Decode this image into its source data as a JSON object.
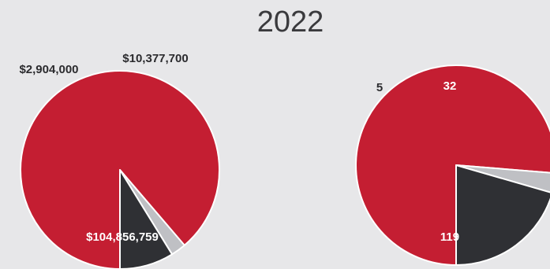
{
  "title": "2022",
  "colors": {
    "background": "#e7e7e9",
    "red": "#c41e32",
    "dark": "#2f3034",
    "light": "#bfc0c4"
  },
  "chart_data": [
    {
      "type": "pie",
      "title": "",
      "slices": [
        {
          "label": "$104,856,759",
          "value": 104856759,
          "color": "#c41e32"
        },
        {
          "label": "$2,904,000",
          "value": 2904000,
          "color": "#bfc0c4"
        },
        {
          "label": "$10,377,700",
          "value": 10377700,
          "color": "#2f3034"
        }
      ]
    },
    {
      "type": "pie",
      "title": "",
      "slices": [
        {
          "label": "119",
          "value": 119,
          "color": "#c41e32"
        },
        {
          "label": "5",
          "value": 5,
          "color": "#bfc0c4"
        },
        {
          "label": "32",
          "value": 32,
          "color": "#2f3034"
        }
      ]
    }
  ]
}
